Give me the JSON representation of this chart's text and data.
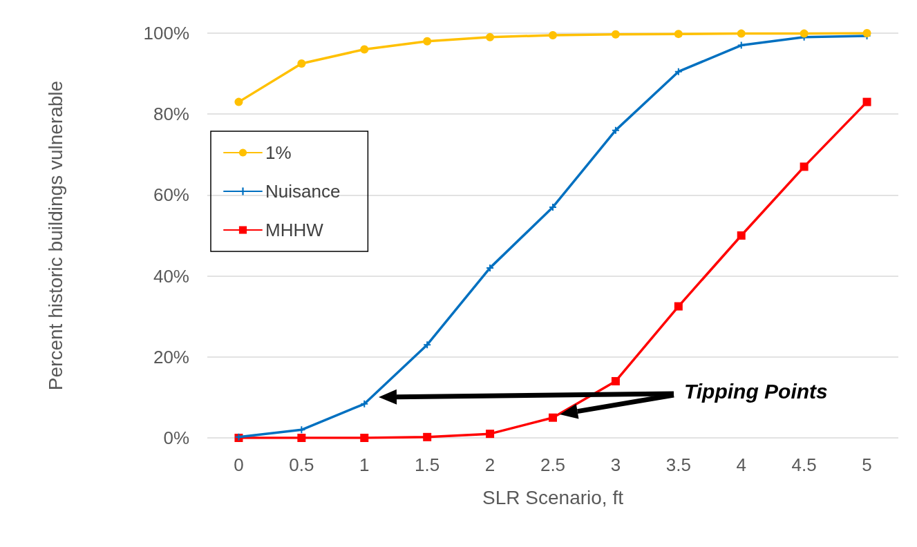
{
  "chart_data": {
    "type": "line",
    "xlabel": "SLR Scenario, ft",
    "ylabel": "Percent historic buildings vulnerable",
    "x": [
      0,
      0.5,
      1,
      1.5,
      2,
      2.5,
      3,
      3.5,
      4,
      4.5,
      5
    ],
    "series": [
      {
        "name": "1%",
        "color": "#ffc000",
        "marker": "circle",
        "values": [
          83,
          92.5,
          96,
          98,
          99,
          99.5,
          99.7,
          99.8,
          99.9,
          99.9,
          100
        ]
      },
      {
        "name": "Nuisance",
        "color": "#0070c0",
        "marker": "cross",
        "values": [
          0.2,
          2,
          8.4,
          23,
          42,
          57,
          76,
          90.5,
          97,
          99,
          99.3
        ]
      },
      {
        "name": "MHHW",
        "color": "#ff0000",
        "marker": "square",
        "values": [
          0,
          0,
          0,
          0.2,
          1,
          5,
          14,
          32.5,
          50,
          67,
          83
        ]
      }
    ],
    "xlim": [
      -0.25,
      5.25
    ],
    "xticks": [
      0,
      0.5,
      1,
      1.5,
      2,
      2.5,
      3,
      3.5,
      4,
      4.5,
      5
    ],
    "ylim": [
      0,
      100
    ],
    "yticks": [
      {
        "value": 0,
        "label": "0%"
      },
      {
        "value": 20,
        "label": "20%"
      },
      {
        "value": 40,
        "label": "40%"
      },
      {
        "value": 60,
        "label": "60%"
      },
      {
        "value": 80,
        "label": "80%"
      },
      {
        "value": 100,
        "label": "100%"
      }
    ],
    "grid": "y",
    "legend": "left",
    "line_style": "solid",
    "annotations": [
      "Tipping Points"
    ]
  }
}
